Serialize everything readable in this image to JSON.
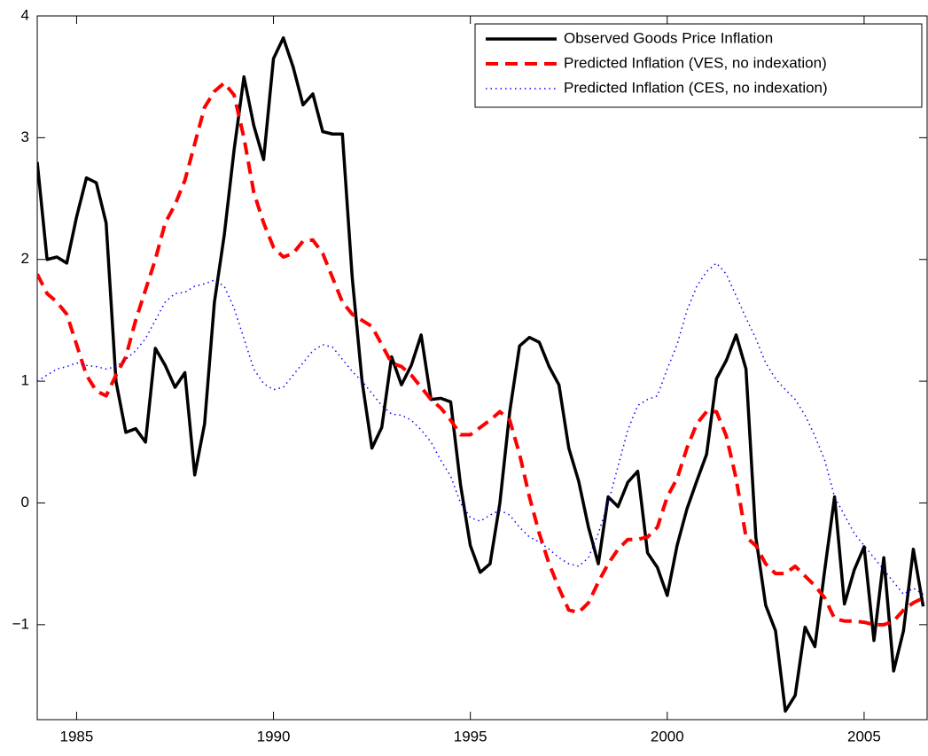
{
  "chart_data": {
    "type": "line",
    "x": [
      1984,
      1984.25,
      1984.5,
      1984.75,
      1985,
      1985.25,
      1985.5,
      1985.75,
      1986,
      1986.25,
      1986.5,
      1986.75,
      1987,
      1987.25,
      1987.5,
      1987.75,
      1988,
      1988.25,
      1988.5,
      1988.75,
      1989,
      1989.25,
      1989.5,
      1989.75,
      1990,
      1990.25,
      1990.5,
      1990.75,
      1991,
      1991.25,
      1991.5,
      1991.75,
      1992,
      1992.25,
      1992.5,
      1992.75,
      1993,
      1993.25,
      1993.5,
      1993.75,
      1994,
      1994.25,
      1994.5,
      1994.75,
      1995,
      1995.25,
      1995.5,
      1995.75,
      1996,
      1996.25,
      1996.5,
      1996.75,
      1997,
      1997.25,
      1997.5,
      1997.75,
      1998,
      1998.25,
      1998.5,
      1998.75,
      1999,
      1999.25,
      1999.5,
      1999.75,
      2000,
      2000.25,
      2000.5,
      2000.75,
      2001,
      2001.25,
      2001.5,
      2001.75,
      2002,
      2002.25,
      2002.5,
      2002.75,
      2003,
      2003.25,
      2003.5,
      2003.75,
      2004,
      2004.25,
      2004.5,
      2004.75,
      2005,
      2005.25,
      2005.5,
      2005.75,
      2006,
      2006.25,
      2006.5
    ],
    "series": [
      {
        "name": "Observed Goods Price Inflation",
        "color": "#000000",
        "linestyle": "solid",
        "values": [
          2.8,
          2.0,
          2.02,
          1.97,
          2.35,
          2.67,
          2.63,
          2.3,
          1.0,
          0.58,
          0.61,
          0.5,
          1.27,
          1.13,
          0.95,
          1.07,
          0.23,
          0.65,
          1.65,
          2.2,
          2.9,
          3.5,
          3.1,
          2.82,
          3.65,
          3.82,
          3.58,
          3.27,
          3.36,
          3.05,
          3.03,
          3.03,
          1.85,
          1.0,
          0.45,
          0.62,
          1.2,
          0.97,
          1.13,
          1.38,
          0.85,
          0.86,
          0.83,
          0.15,
          -0.35,
          -0.57,
          -0.5,
          0.0,
          0.75,
          1.29,
          1.36,
          1.32,
          1.12,
          0.97,
          0.45,
          0.18,
          -0.2,
          -0.5,
          0.05,
          -0.03,
          0.17,
          0.26,
          -0.41,
          -0.53,
          -0.76,
          -0.35,
          -0.05,
          0.18,
          0.4,
          1.02,
          1.17,
          1.38,
          1.1,
          -0.28,
          -0.84,
          -1.05,
          -1.71,
          -1.58,
          -1.02,
          -1.18,
          -0.55,
          0.05,
          -0.83,
          -0.55,
          -0.36,
          -1.13,
          -0.45,
          -1.38,
          -1.05,
          -0.38,
          -0.85
        ]
      },
      {
        "name": "Predicted Inflation (VES, no indexation)",
        "color": "#ff0000",
        "linestyle": "dashed",
        "values": [
          1.88,
          1.72,
          1.65,
          1.55,
          1.3,
          1.05,
          0.92,
          0.88,
          1.05,
          1.2,
          1.5,
          1.75,
          2.0,
          2.3,
          2.45,
          2.65,
          2.95,
          3.25,
          3.38,
          3.45,
          3.35,
          3.0,
          2.55,
          2.3,
          2.1,
          2.02,
          2.05,
          2.15,
          2.16,
          2.05,
          1.85,
          1.65,
          1.55,
          1.5,
          1.45,
          1.3,
          1.15,
          1.12,
          1.05,
          0.95,
          0.85,
          0.78,
          0.68,
          0.56,
          0.56,
          0.62,
          0.68,
          0.75,
          0.68,
          0.4,
          0.05,
          -0.25,
          -0.5,
          -0.7,
          -0.88,
          -0.9,
          -0.82,
          -0.65,
          -0.5,
          -0.38,
          -0.3,
          -0.3,
          -0.28,
          -0.2,
          0.05,
          0.2,
          0.45,
          0.65,
          0.75,
          0.75,
          0.55,
          0.2,
          -0.28,
          -0.35,
          -0.5,
          -0.58,
          -0.58,
          -0.52,
          -0.6,
          -0.68,
          -0.78,
          -0.95,
          -0.97,
          -0.97,
          -0.98,
          -1.0,
          -1.0,
          -0.97,
          -0.88,
          -0.82,
          -0.78
        ]
      },
      {
        "name": "Predicted Inflation (CES, no indexation)",
        "color": "#0000ff",
        "linestyle": "dotted",
        "values": [
          1.0,
          1.05,
          1.1,
          1.12,
          1.15,
          1.13,
          1.12,
          1.1,
          1.12,
          1.18,
          1.25,
          1.35,
          1.5,
          1.65,
          1.72,
          1.73,
          1.78,
          1.8,
          1.83,
          1.78,
          1.6,
          1.35,
          1.1,
          0.98,
          0.93,
          0.95,
          1.05,
          1.15,
          1.25,
          1.3,
          1.28,
          1.18,
          1.08,
          1.0,
          0.9,
          0.8,
          0.73,
          0.72,
          0.68,
          0.6,
          0.5,
          0.35,
          0.22,
          0.0,
          -0.12,
          -0.15,
          -0.1,
          -0.06,
          -0.1,
          -0.2,
          -0.28,
          -0.32,
          -0.38,
          -0.45,
          -0.5,
          -0.52,
          -0.45,
          -0.25,
          0.0,
          0.3,
          0.6,
          0.8,
          0.85,
          0.88,
          1.1,
          1.3,
          1.58,
          1.78,
          1.9,
          1.97,
          1.88,
          1.7,
          1.52,
          1.35,
          1.15,
          1.02,
          0.93,
          0.85,
          0.72,
          0.55,
          0.35,
          0.05,
          -0.1,
          -0.25,
          -0.35,
          -0.45,
          -0.55,
          -0.65,
          -0.75,
          -0.7,
          -0.75
        ]
      }
    ],
    "xlim": [
      1984,
      2006.6
    ],
    "ylim": [
      -1.78,
      4
    ],
    "xticks": [
      1985,
      1990,
      1995,
      2000,
      2005
    ],
    "yticks": [
      {
        "value": -1,
        "label": "−1"
      },
      0,
      1,
      2,
      3,
      4
    ],
    "legend": "upper right"
  }
}
